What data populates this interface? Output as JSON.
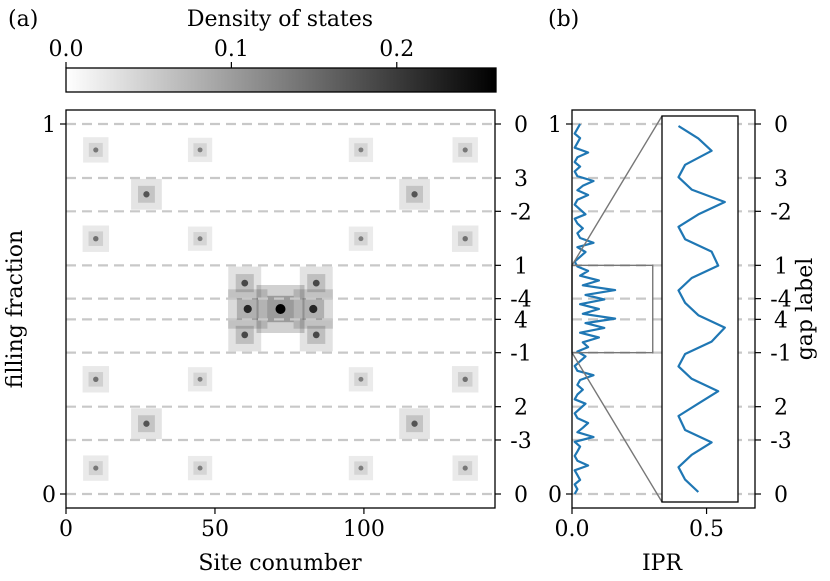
{
  "chart_data": [
    {
      "type": "heatmap",
      "panel_label": "(a)",
      "colorbar": {
        "title": "Density of states",
        "ticks": [
          "0.0",
          "0.1",
          "0.2"
        ],
        "tick_values": [
          0.0,
          0.1,
          0.2
        ],
        "range": [
          0,
          0.26
        ],
        "colormap": "white-to-black"
      },
      "xlabel": "Site conumber",
      "ylabel": "filling fraction",
      "xticks": [
        "0",
        "50",
        "100"
      ],
      "xtick_values": [
        0,
        50,
        100
      ],
      "xlim": [
        0,
        144
      ],
      "yticks": [
        "0",
        "1"
      ],
      "ytick_values": [
        0,
        1
      ],
      "ylim": [
        0,
        1
      ],
      "right_ticks": [
        "0",
        "3",
        "-2",
        "1",
        "-4",
        "4",
        "-1",
        "2",
        "-3",
        "0"
      ],
      "gap_lines": [
        1.0,
        0.854,
        0.764,
        0.618,
        0.528,
        0.472,
        0.382,
        0.236,
        0.146,
        0.0
      ],
      "bright_spots": [
        {
          "x": 72,
          "y": 0.5,
          "value": 0.26
        },
        {
          "x": 61,
          "y": 0.5,
          "value": 0.18
        },
        {
          "x": 83,
          "y": 0.5,
          "value": 0.18
        },
        {
          "x": 60,
          "y": 0.57,
          "value": 0.12
        },
        {
          "x": 84,
          "y": 0.57,
          "value": 0.12
        },
        {
          "x": 60,
          "y": 0.43,
          "value": 0.12
        },
        {
          "x": 84,
          "y": 0.43,
          "value": 0.12
        },
        {
          "x": 27,
          "y": 0.81,
          "value": 0.1
        },
        {
          "x": 117,
          "y": 0.81,
          "value": 0.1
        },
        {
          "x": 27,
          "y": 0.19,
          "value": 0.1
        },
        {
          "x": 117,
          "y": 0.19,
          "value": 0.1
        },
        {
          "x": 10,
          "y": 0.69,
          "value": 0.06
        },
        {
          "x": 134,
          "y": 0.69,
          "value": 0.06
        },
        {
          "x": 10,
          "y": 0.31,
          "value": 0.06
        },
        {
          "x": 134,
          "y": 0.31,
          "value": 0.06
        },
        {
          "x": 10,
          "y": 0.93,
          "value": 0.05
        },
        {
          "x": 134,
          "y": 0.93,
          "value": 0.05
        },
        {
          "x": 10,
          "y": 0.07,
          "value": 0.05
        },
        {
          "x": 134,
          "y": 0.07,
          "value": 0.05
        },
        {
          "x": 45,
          "y": 0.93,
          "value": 0.04
        },
        {
          "x": 99,
          "y": 0.93,
          "value": 0.04
        },
        {
          "x": 45,
          "y": 0.07,
          "value": 0.04
        },
        {
          "x": 99,
          "y": 0.07,
          "value": 0.04
        },
        {
          "x": 45,
          "y": 0.69,
          "value": 0.04
        },
        {
          "x": 99,
          "y": 0.69,
          "value": 0.04
        },
        {
          "x": 45,
          "y": 0.31,
          "value": 0.04
        },
        {
          "x": 99,
          "y": 0.31,
          "value": 0.04
        }
      ]
    },
    {
      "type": "line",
      "panel_label": "(b)",
      "xlabel": "IPR",
      "ylabel": "gap label",
      "xticks": [
        "0.0",
        "0.5"
      ],
      "xtick_values": [
        0.0,
        0.5
      ],
      "xlim": [
        0,
        0.68
      ],
      "yticks": [
        "0",
        "1"
      ],
      "ytick_values": [
        0,
        1
      ],
      "ylim": [
        0,
        1
      ],
      "right_ticks": [
        "0",
        "3",
        "-2",
        "1",
        "-4",
        "4",
        "-1",
        "2",
        "-3",
        "0"
      ],
      "line_color": "#1f77b4",
      "series": {
        "x": [
          0.01,
          0.02,
          0.01,
          0.03,
          0.02,
          0.01,
          0.06,
          0.02,
          0.01,
          0.02,
          0.03,
          0.01,
          0.08,
          0.02,
          0.04,
          0.06,
          0.02,
          0.01,
          0.03,
          0.05,
          0.01,
          0.02,
          0.04,
          0.02,
          0.03,
          0.08,
          0.02,
          0.01,
          0.03,
          0.05,
          0.02,
          0.06,
          0.04,
          0.1,
          0.03,
          0.12,
          0.05,
          0.16,
          0.04,
          0.1,
          0.03,
          0.12,
          0.05,
          0.16,
          0.04,
          0.1,
          0.03,
          0.06,
          0.02,
          0.01,
          0.03,
          0.05,
          0.02,
          0.08,
          0.03,
          0.02,
          0.04,
          0.02,
          0.01,
          0.05,
          0.03,
          0.01,
          0.02,
          0.06,
          0.02,
          0.04,
          0.08,
          0.02,
          0.01,
          0.03,
          0.01,
          0.02,
          0.06,
          0.01,
          0.02,
          0.03,
          0.01,
          0.02,
          0.03
        ],
        "y": [
          0,
          0.013,
          0.026,
          0.038,
          0.051,
          0.064,
          0.077,
          0.09,
          0.103,
          0.115,
          0.128,
          0.141,
          0.154,
          0.167,
          0.179,
          0.192,
          0.205,
          0.218,
          0.231,
          0.244,
          0.256,
          0.269,
          0.282,
          0.295,
          0.308,
          0.321,
          0.333,
          0.346,
          0.359,
          0.372,
          0.385,
          0.397,
          0.41,
          0.423,
          0.436,
          0.449,
          0.462,
          0.474,
          0.487,
          0.5,
          0.513,
          0.526,
          0.538,
          0.551,
          0.564,
          0.577,
          0.59,
          0.603,
          0.615,
          0.628,
          0.641,
          0.654,
          0.667,
          0.679,
          0.692,
          0.705,
          0.718,
          0.731,
          0.744,
          0.756,
          0.769,
          0.782,
          0.795,
          0.808,
          0.821,
          0.833,
          0.846,
          0.859,
          0.872,
          0.885,
          0.897,
          0.91,
          0.923,
          0.936,
          0.949,
          0.962,
          0.974,
          0.987,
          1.0
        ]
      },
      "zoom_window": {
        "xlim": [
          0,
          0.3
        ],
        "ylim": [
          0.382,
          0.618
        ]
      },
      "inset": {
        "x": [
          0.44,
          0.4,
          0.38,
          0.42,
          0.48,
          0.4,
          0.38,
          0.44,
          0.5,
          0.42,
          0.38,
          0.4,
          0.48,
          0.52,
          0.44,
          0.4,
          0.38,
          0.42,
          0.5,
          0.48,
          0.4,
          0.38,
          0.44,
          0.52,
          0.42,
          0.38,
          0.4,
          0.48,
          0.44,
          0.38
        ],
        "y": [
          0.382,
          0.39,
          0.398,
          0.406,
          0.414,
          0.422,
          0.431,
          0.439,
          0.447,
          0.455,
          0.463,
          0.471,
          0.479,
          0.488,
          0.496,
          0.504,
          0.512,
          0.52,
          0.528,
          0.537,
          0.545,
          0.553,
          0.561,
          0.569,
          0.577,
          0.585,
          0.593,
          0.602,
          0.61,
          0.618
        ]
      }
    }
  ]
}
